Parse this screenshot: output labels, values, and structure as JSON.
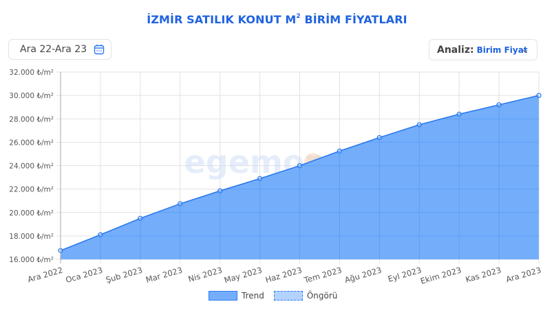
{
  "header": {
    "title_main": "İZMİR SATILIK KONUT M",
    "title_sup": "2",
    "title_tail": " BİRİM FİYATLARI"
  },
  "controls": {
    "date_range": "Ara 22-Ara 23",
    "calendar_icon": "calendar-icon",
    "analysis_label": "Analiz:",
    "analysis_value": "Birim Fiyat",
    "chevron_icon": "chevron-down-icon"
  },
  "watermark": "egemoney",
  "legend": {
    "trend": "Trend",
    "forecast": "Öngörü"
  },
  "colors": {
    "accent": "#1f63e0",
    "area_fill": "#74aefb",
    "line": "#2a79ee",
    "forecast_fill": "#b3d2fc"
  },
  "chart_data": {
    "type": "area",
    "title": "İZMİR SATILIK KONUT M² BİRİM FİYATLARI",
    "xlabel": "",
    "ylabel": "₺/m²",
    "ylim": [
      16000,
      32000
    ],
    "yticks": [
      "16.000 ₺/m²",
      "18.000 ₺/m²",
      "20.000 ₺/m²",
      "22.000 ₺/m²",
      "24.000 ₺/m²",
      "26.000 ₺/m²",
      "28.000 ₺/m²",
      "30.000 ₺/m²",
      "32.000 ₺/m²"
    ],
    "categories": [
      "Ara 2022",
      "Oca 2023",
      "Şub 2023",
      "Mar 2023",
      "Nis 2023",
      "May 2023",
      "Haz 2023",
      "Tem 2023",
      "Ağu 2023",
      "Eyl 2023",
      "Ekim 2023",
      "Kas 2023",
      "Ara 2023"
    ],
    "series": [
      {
        "name": "Trend",
        "values": [
          16750,
          18100,
          19500,
          20750,
          21850,
          22900,
          24000,
          25250,
          26400,
          27500,
          28400,
          29200,
          30000
        ]
      },
      {
        "name": "Öngörü",
        "values": []
      }
    ],
    "grid": true,
    "legend_position": "bottom"
  }
}
